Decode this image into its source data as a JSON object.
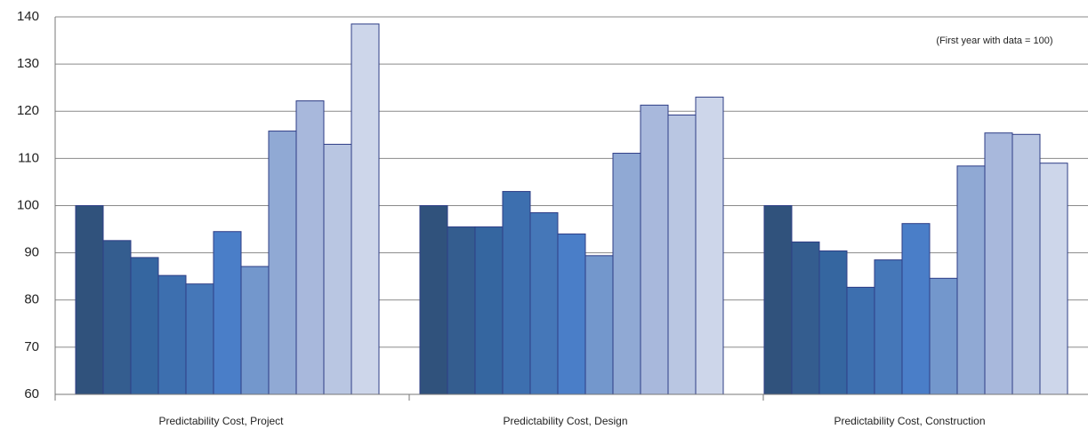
{
  "chart_data": {
    "type": "bar",
    "annotation": "(First year with data = 100)",
    "categories": [
      "Predictability Cost, Project",
      "Predictability Cost, Design",
      "Predictability Cost, Construction"
    ],
    "series": [
      {
        "color": "#30527c",
        "values": [
          100,
          100,
          100
        ]
      },
      {
        "color": "#345d8f",
        "values": [
          92.6,
          95.5,
          92.3
        ]
      },
      {
        "color": "#3566a0",
        "values": [
          89,
          95.5,
          90.4
        ]
      },
      {
        "color": "#3d6faf",
        "values": [
          85.2,
          103,
          82.7
        ]
      },
      {
        "color": "#4577b8",
        "values": [
          83.4,
          98.5,
          88.5
        ]
      },
      {
        "color": "#4a7ec8",
        "values": [
          94.5,
          94,
          96.2
        ]
      },
      {
        "color": "#7397cc",
        "values": [
          87.1,
          89.4,
          84.6
        ]
      },
      {
        "color": "#90a9d4",
        "values": [
          115.8,
          111.1,
          108.4
        ]
      },
      {
        "color": "#a8b8dc",
        "values": [
          122.2,
          121.3,
          115.4
        ]
      },
      {
        "color": "#b9c6e2",
        "values": [
          113,
          119.2,
          115.1
        ]
      },
      {
        "color": "#cdd6ea",
        "values": [
          138.5,
          123,
          109
        ]
      }
    ],
    "ylim": [
      60,
      140
    ],
    "yticks": [
      60,
      70,
      80,
      90,
      100,
      110,
      120,
      130,
      140
    ],
    "grid": true
  }
}
